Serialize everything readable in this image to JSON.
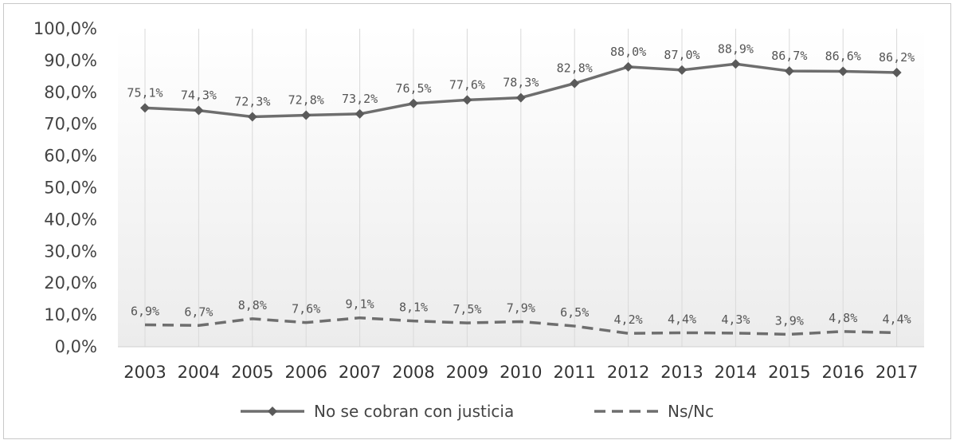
{
  "chart_data": {
    "type": "line",
    "title": "",
    "xlabel": "",
    "ylabel": "",
    "categories": [
      "2003",
      "2004",
      "2005",
      "2006",
      "2007",
      "2008",
      "2009",
      "2010",
      "2011",
      "2012",
      "2013",
      "2014",
      "2015",
      "2016",
      "2017"
    ],
    "ylim": [
      0,
      100
    ],
    "y_ticks": [
      "0,0%",
      "10,0%",
      "20,0%",
      "30,0%",
      "40,0%",
      "50,0%",
      "60,0%",
      "70,0%",
      "80,0%",
      "90,0%",
      "100,0%"
    ],
    "series": [
      {
        "name": "No se cobran con justicia",
        "style": "solid-with-markers",
        "color": "#6e6e6e",
        "values": [
          75.1,
          74.3,
          72.3,
          72.8,
          73.2,
          76.5,
          77.6,
          78.3,
          82.8,
          88.0,
          87.0,
          88.9,
          86.7,
          86.6,
          86.2
        ],
        "labels": [
          "75,1%",
          "74,3%",
          "72,3%",
          "72,8%",
          "73,2%",
          "76,5%",
          "77,6%",
          "78,3%",
          "82,8%",
          "88,0%",
          "87,0%",
          "88,9%",
          "86,7%",
          "86,6%",
          "86,2%"
        ]
      },
      {
        "name": "Ns/Nc",
        "style": "dashed",
        "color": "#6e6e6e",
        "values": [
          6.9,
          6.7,
          8.8,
          7.6,
          9.1,
          8.1,
          7.5,
          7.9,
          6.5,
          4.2,
          4.4,
          4.3,
          3.9,
          4.8,
          4.4
        ],
        "labels": [
          "6,9%",
          "6,7%",
          "8,8%",
          "7,6%",
          "9,1%",
          "8,1%",
          "7,5%",
          "7,9%",
          "6,5%",
          "4,2%",
          "4,4%",
          "4,3%",
          "3,9%",
          "4,8%",
          "4,4%"
        ]
      }
    ],
    "grid": "vertical",
    "legend_position": "bottom"
  }
}
